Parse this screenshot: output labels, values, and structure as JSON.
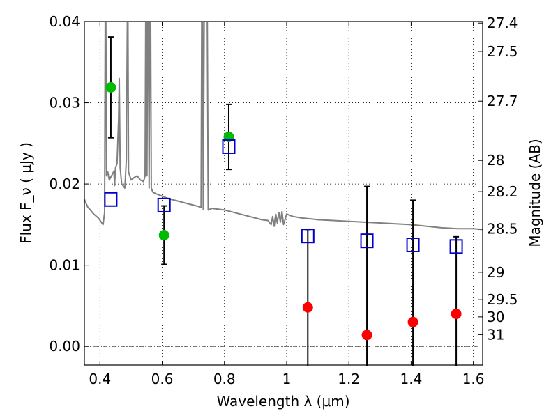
{
  "chart_data": {
    "type": "scatter",
    "xlabel": "Wavelength  λ (μm)",
    "ylabel": "Flux  F_ν  ( μJy )",
    "ylabel_right": "Magnitude (AB)",
    "xlim": [
      0.35,
      1.63
    ],
    "ylim": [
      -0.0023,
      0.04
    ],
    "x_ticks": [
      0.4,
      0.6,
      0.8,
      1.0,
      1.2,
      1.4,
      1.6
    ],
    "x_tick_labels": [
      "0.4",
      "0.6",
      "0.8",
      "1",
      "1.2",
      "1.4",
      "1.6"
    ],
    "y_ticks": [
      0.0,
      0.01,
      0.02,
      0.03,
      0.04
    ],
    "y_tick_labels": [
      "0.00",
      "0.01",
      "0.02",
      "0.03",
      "0.04"
    ],
    "right_ticks": [
      {
        "label": "27.4",
        "mag": 27.4
      },
      {
        "label": "27.5",
        "mag": 27.5
      },
      {
        "label": "27.7",
        "mag": 27.7
      },
      {
        "label": "28",
        "mag": 28.0
      },
      {
        "label": "28.2",
        "mag": 28.2
      },
      {
        "label": "28.5",
        "mag": 28.5
      },
      {
        "label": "29",
        "mag": 29.0
      },
      {
        "label": "29.5",
        "mag": 29.5
      },
      {
        "label": "30",
        "mag": 30.0
      },
      {
        "label": "31",
        "mag": 31.0
      }
    ],
    "grid": true,
    "series": [
      {
        "marker": "circle",
        "color": "#00bb00",
        "points": [
          {
            "x": 0.435,
            "y": 0.0319,
            "err": 0.0062
          },
          {
            "x": 0.606,
            "y": 0.0137,
            "err": 0.0036
          },
          {
            "x": 0.814,
            "y": 0.0258,
            "err": 0.004
          }
        ]
      },
      {
        "marker": "circle",
        "color": "#ff0000",
        "points": [
          {
            "x": 1.068,
            "y": 0.0048,
            "err": 0.0096
          },
          {
            "x": 1.258,
            "y": 0.0014,
            "err": 0.0183
          },
          {
            "x": 1.406,
            "y": 0.003,
            "err": 0.015
          },
          {
            "x": 1.545,
            "y": 0.004,
            "err": 0.0095
          }
        ]
      },
      {
        "marker": "open-square",
        "color": "#0000cc",
        "points": [
          {
            "x": 0.435,
            "y": 0.0181
          },
          {
            "x": 0.606,
            "y": 0.0174
          },
          {
            "x": 0.814,
            "y": 0.0246
          },
          {
            "x": 1.068,
            "y": 0.0136
          },
          {
            "x": 1.258,
            "y": 0.013
          },
          {
            "x": 1.406,
            "y": 0.0125
          },
          {
            "x": 1.545,
            "y": 0.0123
          }
        ]
      }
    ],
    "template_curve": {
      "color": "#808080",
      "points": [
        [
          0.35,
          0.0181
        ],
        [
          0.36,
          0.0172
        ],
        [
          0.38,
          0.0163
        ],
        [
          0.395,
          0.0158
        ],
        [
          0.41,
          0.015
        ],
        [
          0.415,
          0.0165
        ],
        [
          0.417,
          0.04
        ],
        [
          0.419,
          0.04
        ],
        [
          0.421,
          0.021
        ],
        [
          0.425,
          0.0215
        ],
        [
          0.43,
          0.0205
        ],
        [
          0.44,
          0.0212
        ],
        [
          0.445,
          0.0216
        ],
        [
          0.447,
          0.0198
        ],
        [
          0.45,
          0.022
        ],
        [
          0.455,
          0.0225
        ],
        [
          0.46,
          0.028
        ],
        [
          0.462,
          0.033
        ],
        [
          0.465,
          0.022
        ],
        [
          0.47,
          0.02
        ],
        [
          0.48,
          0.0195
        ],
        [
          0.485,
          0.023
        ],
        [
          0.488,
          0.04
        ],
        [
          0.49,
          0.04
        ],
        [
          0.492,
          0.0215
        ],
        [
          0.5,
          0.0205
        ],
        [
          0.51,
          0.0208
        ],
        [
          0.52,
          0.021
        ],
        [
          0.53,
          0.0205
        ],
        [
          0.54,
          0.0203
        ],
        [
          0.545,
          0.021
        ],
        [
          0.547,
          0.04
        ],
        [
          0.549,
          0.04
        ],
        [
          0.551,
          0.021
        ],
        [
          0.553,
          0.04
        ],
        [
          0.556,
          0.04
        ],
        [
          0.558,
          0.0195
        ],
        [
          0.56,
          0.04
        ],
        [
          0.563,
          0.04
        ],
        [
          0.565,
          0.0195
        ],
        [
          0.57,
          0.019
        ],
        [
          0.58,
          0.0188
        ],
        [
          0.6,
          0.0185
        ],
        [
          0.62,
          0.0182
        ],
        [
          0.64,
          0.018
        ],
        [
          0.66,
          0.0178
        ],
        [
          0.68,
          0.0176
        ],
        [
          0.7,
          0.0174
        ],
        [
          0.72,
          0.0172
        ],
        [
          0.725,
          0.0171
        ],
        [
          0.727,
          0.04
        ],
        [
          0.73,
          0.04
        ],
        [
          0.732,
          0.0169
        ],
        [
          0.735,
          0.04
        ],
        [
          0.745,
          0.04
        ],
        [
          0.748,
          0.0168
        ],
        [
          0.76,
          0.017
        ],
        [
          0.78,
          0.0169
        ],
        [
          0.8,
          0.0168
        ],
        [
          0.82,
          0.0166
        ],
        [
          0.85,
          0.0163
        ],
        [
          0.88,
          0.016
        ],
        [
          0.9,
          0.0158
        ],
        [
          0.92,
          0.0156
        ],
        [
          0.94,
          0.0155
        ],
        [
          0.95,
          0.015
        ],
        [
          0.955,
          0.016
        ],
        [
          0.96,
          0.0148
        ],
        [
          0.965,
          0.0163
        ],
        [
          0.97,
          0.0152
        ],
        [
          0.975,
          0.0165
        ],
        [
          0.98,
          0.0153
        ],
        [
          0.985,
          0.0166
        ],
        [
          0.99,
          0.015
        ],
        [
          1.0,
          0.0163
        ],
        [
          1.02,
          0.016
        ],
        [
          1.05,
          0.0158
        ],
        [
          1.08,
          0.0157
        ],
        [
          1.1,
          0.0156
        ],
        [
          1.15,
          0.0155
        ],
        [
          1.2,
          0.0154
        ],
        [
          1.25,
          0.0153
        ],
        [
          1.3,
          0.0152
        ],
        [
          1.35,
          0.0151
        ],
        [
          1.4,
          0.015
        ],
        [
          1.45,
          0.0148
        ],
        [
          1.5,
          0.0146
        ],
        [
          1.55,
          0.0145
        ],
        [
          1.6,
          0.0145
        ],
        [
          1.63,
          0.0144
        ]
      ]
    }
  }
}
